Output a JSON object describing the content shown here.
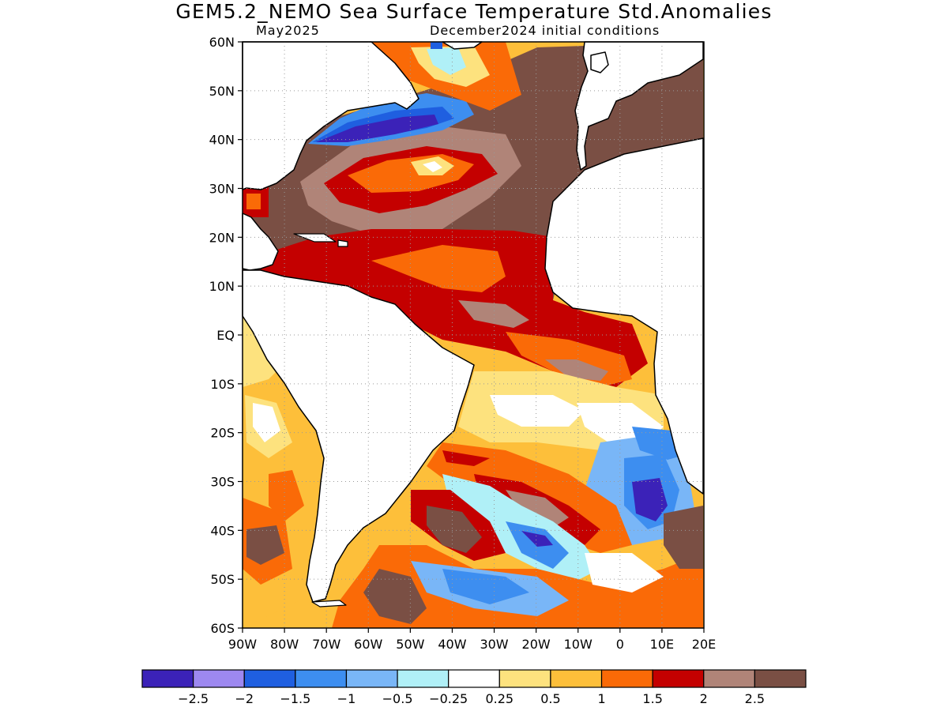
{
  "title": "GEM5.2_NEMO Sea Surface Temperature Std.Anomalies",
  "subtitle_left": "May2025",
  "subtitle_right": "December2024 initial conditions",
  "map": {
    "lat_labels": [
      "60N",
      "50N",
      "40N",
      "30N",
      "20N",
      "10N",
      "EQ",
      "10S",
      "20S",
      "30S",
      "40S",
      "50S",
      "60S"
    ],
    "lon_labels": [
      "90W",
      "80W",
      "70W",
      "60W",
      "50W",
      "40W",
      "30W",
      "20W",
      "10W",
      "0",
      "10E",
      "20E"
    ],
    "land_color": "#ffffff",
    "grid": "dotted"
  },
  "colorbar": {
    "colors": [
      "#3b22b8",
      "#9d88f0",
      "#1f5fe0",
      "#3d8ef0",
      "#79b6f7",
      "#b0f0f7",
      "#ffffff",
      "#fde27e",
      "#fdbf3a",
      "#fa6a07",
      "#c40000",
      "#b08478",
      "#7a4f44"
    ],
    "labels": [
      "-2.5",
      "-2",
      "-1.5",
      "-1",
      "-0.5",
      "-0.25",
      "0.25",
      "0.5",
      "1",
      "1.5",
      "2",
      "2.5"
    ]
  }
}
